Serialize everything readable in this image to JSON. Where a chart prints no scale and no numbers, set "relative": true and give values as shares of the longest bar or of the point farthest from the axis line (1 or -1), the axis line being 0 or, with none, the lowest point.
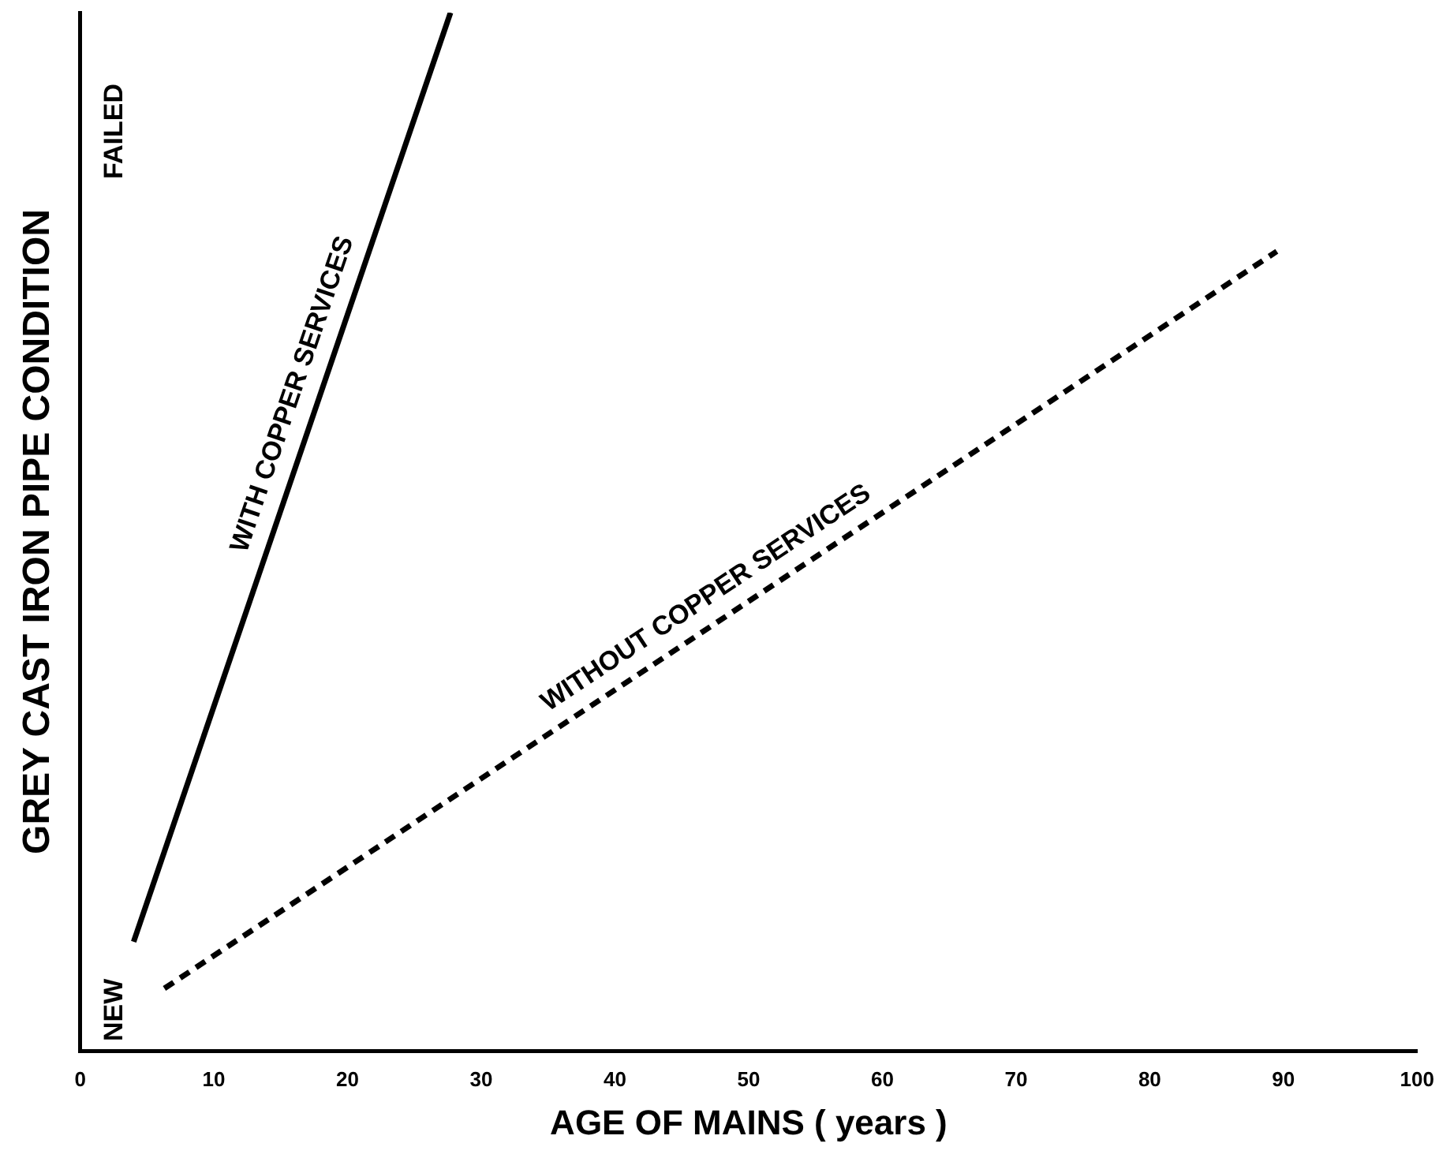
{
  "chart_data": {
    "type": "line",
    "relative": true,
    "xlabel": "AGE OF MAINS ( years )",
    "ylabel": "GREY CAST IRON PIPE CONDITION",
    "xlim": [
      0,
      100
    ],
    "xticks": [
      0,
      10,
      20,
      30,
      40,
      50,
      60,
      70,
      80,
      90,
      100
    ],
    "grid": false,
    "legend": false,
    "marker": "none",
    "annotations": [
      "NEW",
      "FAILED"
    ],
    "series": [
      {
        "name": "WITH COPPER SERVICES",
        "color": "#000000",
        "line_style": "solid",
        "x": [
          4,
          27.7
        ],
        "values": [
          0.105,
          1
        ]
      },
      {
        "name": "WITHOUT COPPER SERVICES",
        "color": "#000000",
        "line_style": "dashed",
        "x": [
          6.3,
          89.5
        ],
        "values": [
          0.06,
          0.77
        ]
      }
    ]
  }
}
